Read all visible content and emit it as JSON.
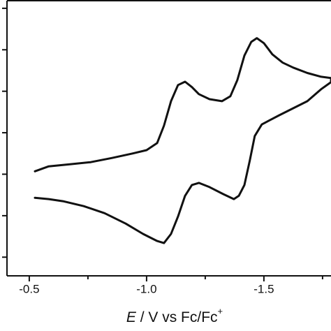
{
  "chart_data": {
    "type": "line",
    "x_label": {
      "italic": "E",
      "text": " / V vs Fc/Fc",
      "superscript": "+"
    },
    "xlim": [
      -0.405,
      -1.786
    ],
    "xticks": [
      -0.5,
      {
        "value": -1.0,
        "label": "-1.0"
      },
      -1.5
    ],
    "xminor_ticks": [
      -0.75,
      -1.25,
      -1.75
    ],
    "ylim": [
      -0.45,
      6.2
    ],
    "yticks": [
      0,
      1,
      2,
      3,
      4,
      5,
      6
    ],
    "series": [
      {
        "color": "#111111",
        "x": [
          -0.524,
          -0.583,
          -0.673,
          -0.762,
          -0.851,
          -0.94,
          -1.0,
          -1.045,
          -1.074,
          -1.104,
          -1.134,
          -1.164,
          -1.193,
          -1.223,
          -1.268,
          -1.321,
          -1.357,
          -1.387,
          -1.417,
          -1.446,
          -1.47,
          -1.5,
          -1.536,
          -1.58,
          -1.625,
          -1.685,
          -1.744,
          -1.786,
          -1.786,
          -1.744,
          -1.685,
          -1.625,
          -1.565,
          -1.521,
          -1.491,
          -1.461,
          -1.44,
          -1.417,
          -1.393,
          -1.372,
          -1.327,
          -1.268,
          -1.223,
          -1.193,
          -1.164,
          -1.134,
          -1.104,
          -1.074,
          -1.045,
          -0.985,
          -0.911,
          -0.821,
          -0.732,
          -0.643,
          -0.583,
          -0.524
        ],
        "values": [
          2.07,
          2.19,
          2.24,
          2.29,
          2.39,
          2.5,
          2.58,
          2.75,
          3.17,
          3.76,
          4.15,
          4.23,
          4.1,
          3.93,
          3.81,
          3.76,
          3.88,
          4.27,
          4.86,
          5.19,
          5.28,
          5.16,
          4.89,
          4.69,
          4.57,
          4.44,
          4.35,
          4.32,
          4.22,
          4.05,
          3.76,
          3.59,
          3.42,
          3.29,
          3.2,
          2.92,
          2.33,
          1.74,
          1.48,
          1.4,
          1.52,
          1.69,
          1.79,
          1.74,
          1.48,
          0.98,
          0.56,
          0.34,
          0.39,
          0.56,
          0.81,
          1.06,
          1.23,
          1.35,
          1.4,
          1.43
        ]
      }
    ]
  }
}
